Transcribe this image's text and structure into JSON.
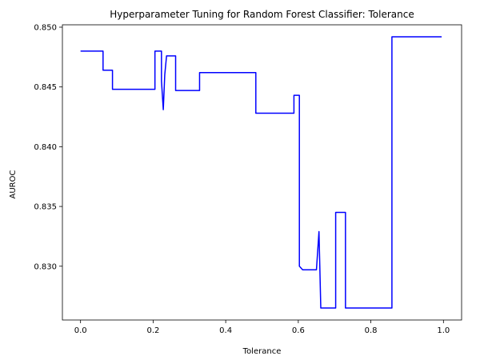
{
  "chart_data": {
    "type": "line",
    "title": "Hyperparameter Tuning for Random Forest Classifier: Tolerance",
    "xlabel": "Tolerance",
    "ylabel": "AUROC",
    "xlim": [
      -0.05,
      1.05
    ],
    "ylim": [
      0.8255,
      0.8502
    ],
    "xticks": [
      0.0,
      0.2,
      0.4,
      0.6,
      0.8,
      1.0
    ],
    "xtick_labels": [
      "0.0",
      "0.2",
      "0.4",
      "0.6",
      "0.8",
      "1.0"
    ],
    "yticks": [
      0.83,
      0.835,
      0.84,
      0.845,
      0.85
    ],
    "ytick_labels": [
      "0.830",
      "0.835",
      "0.840",
      "0.845",
      "0.850"
    ],
    "grid": false,
    "legend": null,
    "series": [
      {
        "color": "#0000ff",
        "x": [
          0.0,
          0.062,
          0.062,
          0.088,
          0.088,
          0.205,
          0.205,
          0.223,
          0.223,
          0.228,
          0.232,
          0.237,
          0.237,
          0.262,
          0.262,
          0.328,
          0.328,
          0.483,
          0.483,
          0.588,
          0.588,
          0.603,
          0.603,
          0.612,
          0.612,
          0.65,
          0.65,
          0.657,
          0.657,
          0.662,
          0.662,
          0.703,
          0.703,
          0.73,
          0.73,
          0.858,
          0.858,
          0.995
        ],
        "y": [
          0.848,
          0.848,
          0.8464,
          0.8464,
          0.8448,
          0.8448,
          0.848,
          0.848,
          0.8455,
          0.8431,
          0.846,
          0.8476,
          0.8476,
          0.8476,
          0.8447,
          0.8447,
          0.8462,
          0.8462,
          0.8428,
          0.8428,
          0.8443,
          0.8443,
          0.83,
          0.8297,
          0.8297,
          0.8297,
          0.8297,
          0.8329,
          0.8329,
          0.8265,
          0.8265,
          0.8265,
          0.8345,
          0.8345,
          0.8265,
          0.8265,
          0.8492,
          0.8492
        ]
      }
    ]
  }
}
